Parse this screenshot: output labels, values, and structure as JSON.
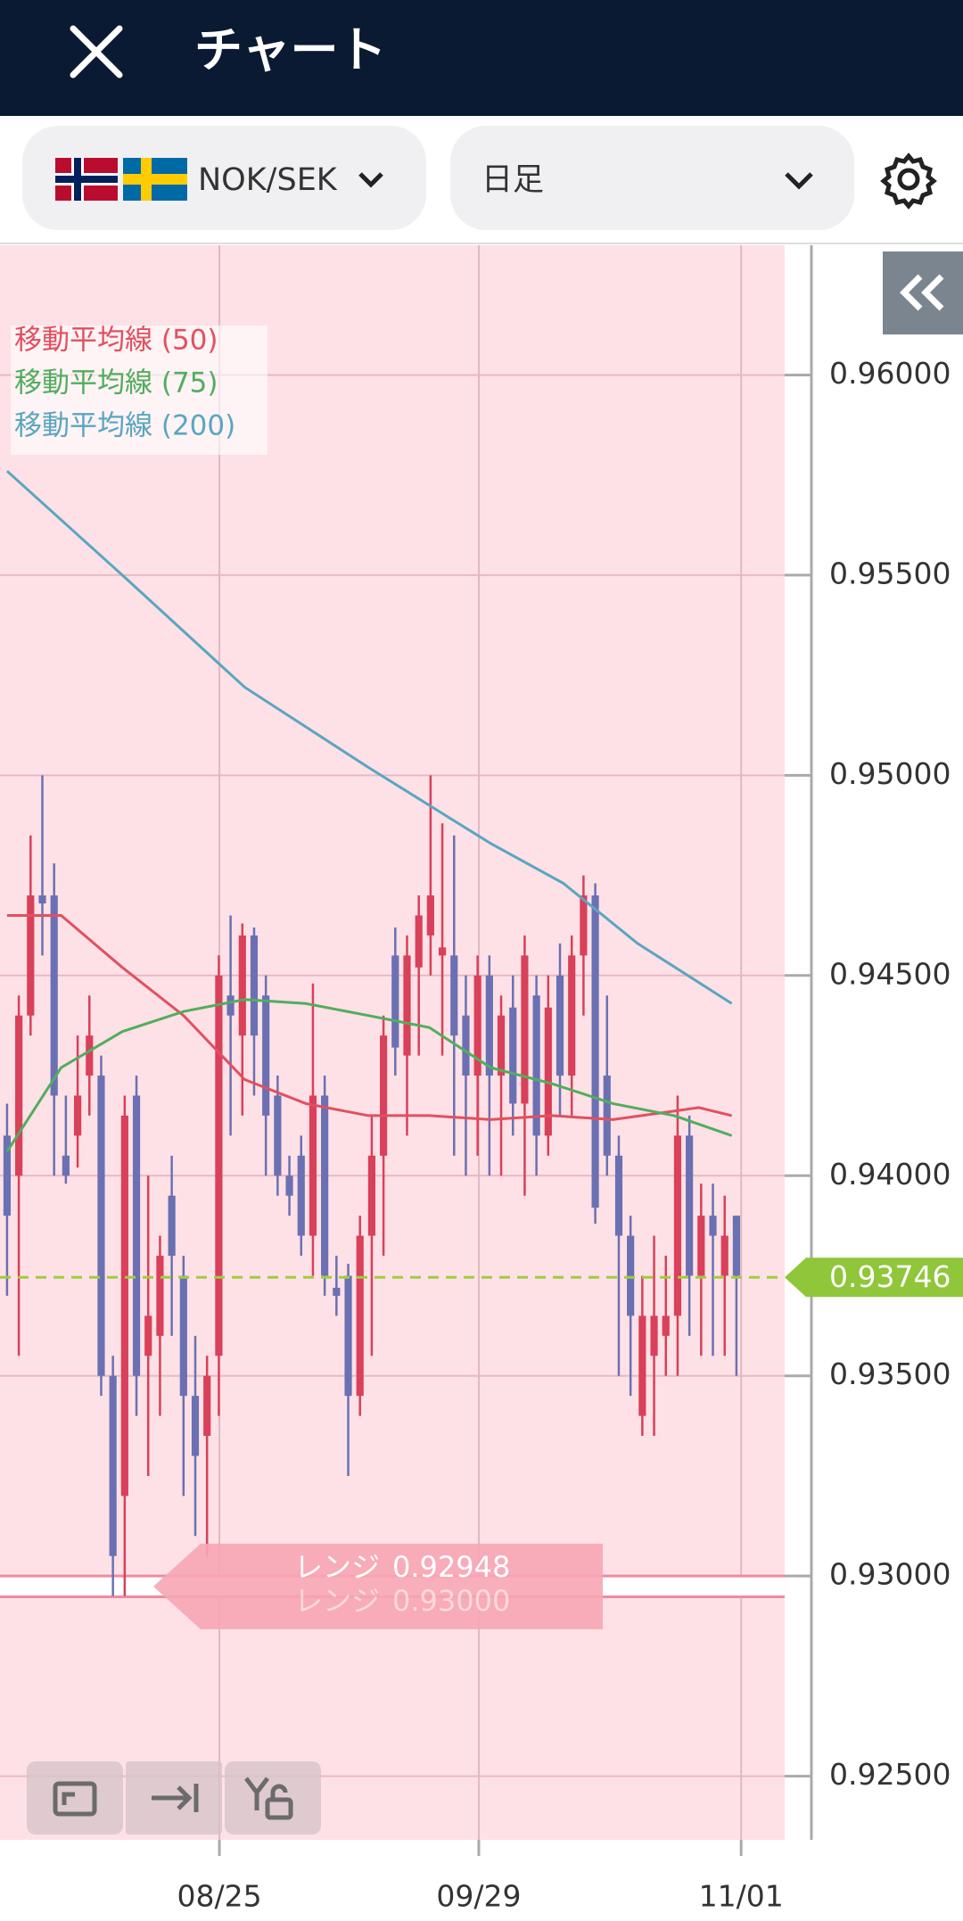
{
  "header": {
    "title": "チャート"
  },
  "toolbar": {
    "pair": "NOK/SEK",
    "timeframe": "日足"
  },
  "chart_data": {
    "type": "candlestick",
    "xlim": [
      -0.6,
      66.1
    ],
    "xticks": [
      {
        "value": 18.05,
        "label": "08/25"
      },
      {
        "value": 40.1,
        "label": "09/29"
      },
      {
        "value": 62.4,
        "label": "11/01"
      }
    ],
    "ylim": [
      0.92341,
      0.96324
    ],
    "yticks": [
      {
        "value": 0.96,
        "label": "0.96000"
      },
      {
        "value": 0.955,
        "label": "0.95500"
      },
      {
        "value": 0.95,
        "label": "0.95000"
      },
      {
        "value": 0.945,
        "label": "0.94500"
      },
      {
        "value": 0.94,
        "label": "0.94000"
      },
      {
        "value": 0.935,
        "label": "0.93500"
      },
      {
        "value": 0.93,
        "label": "0.93000"
      },
      {
        "value": 0.925,
        "label": "0.92500"
      }
    ],
    "grid": true,
    "up_color": "#d9405a",
    "down_color": "#6b70b3",
    "open": [
      0.941,
      0.94,
      0.944,
      0.947,
      0.947,
      0.9405,
      0.941,
      0.9425,
      0.9425,
      0.935,
      0.932,
      0.942,
      0.9355,
      0.936,
      0.9395,
      0.9375,
      0.9345,
      0.9335,
      0.9355,
      0.9445,
      0.9435,
      0.946,
      0.9445,
      0.942,
      0.94,
      0.9405,
      0.9385,
      0.942,
      0.9372,
      0.9375,
      0.9345,
      0.9385,
      0.9405,
      0.9455,
      0.943,
      0.9452,
      0.946,
      0.9455,
      0.9455,
      0.944,
      0.9425,
      0.945,
      0.9425,
      0.9442,
      0.9418,
      0.9445,
      0.941,
      0.945,
      0.9425,
      0.9455,
      0.947,
      0.9425,
      0.9405,
      0.9385,
      0.934,
      0.9355,
      0.936,
      0.9365,
      0.941,
      0.9375,
      0.939,
      0.9375,
      0.939
    ],
    "high": [
      0.9418,
      0.9445,
      0.9485,
      0.95,
      0.9478,
      0.942,
      0.9435,
      0.9445,
      0.943,
      0.9355,
      0.942,
      0.9425,
      0.94,
      0.9385,
      0.9405,
      0.938,
      0.936,
      0.9355,
      0.9455,
      0.9465,
      0.9463,
      0.9462,
      0.945,
      0.9425,
      0.9405,
      0.941,
      0.9448,
      0.9425,
      0.938,
      0.9378,
      0.939,
      0.9415,
      0.944,
      0.9462,
      0.946,
      0.947,
      0.95,
      0.9488,
      0.9485,
      0.945,
      0.9455,
      0.9455,
      0.9445,
      0.945,
      0.946,
      0.945,
      0.945,
      0.9458,
      0.946,
      0.9475,
      0.9473,
      0.9445,
      0.941,
      0.939,
      0.9375,
      0.9385,
      0.938,
      0.942,
      0.9415,
      0.9398,
      0.9398,
      0.9395,
      0.939
    ],
    "low": [
      0.937,
      0.9355,
      0.9435,
      0.9455,
      0.94,
      0.9398,
      0.9402,
      0.9415,
      0.9345,
      0.9295,
      0.9295,
      0.934,
      0.9325,
      0.934,
      0.936,
      0.932,
      0.931,
      0.9305,
      0.934,
      0.941,
      0.9415,
      0.942,
      0.94,
      0.9395,
      0.939,
      0.938,
      0.9375,
      0.937,
      0.9365,
      0.9325,
      0.934,
      0.9355,
      0.938,
      0.9425,
      0.941,
      0.943,
      0.945,
      0.943,
      0.9405,
      0.94,
      0.9405,
      0.94,
      0.94,
      0.941,
      0.9395,
      0.94,
      0.9405,
      0.9415,
      0.9415,
      0.944,
      0.9388,
      0.94,
      0.935,
      0.9345,
      0.9335,
      0.9335,
      0.935,
      0.935,
      0.936,
      0.9355,
      0.9355,
      0.9355,
      0.935
    ],
    "close": [
      0.939,
      0.944,
      0.947,
      0.9468,
      0.942,
      0.94,
      0.942,
      0.9435,
      0.935,
      0.9305,
      0.9415,
      0.935,
      0.9365,
      0.938,
      0.938,
      0.9345,
      0.933,
      0.935,
      0.945,
      0.944,
      0.946,
      0.9435,
      0.9415,
      0.94,
      0.9395,
      0.9385,
      0.942,
      0.9375,
      0.937,
      0.9345,
      0.9385,
      0.9405,
      0.9435,
      0.9432,
      0.9455,
      0.9465,
      0.947,
      0.9457,
      0.9435,
      0.9425,
      0.945,
      0.9425,
      0.944,
      0.9418,
      0.9455,
      0.941,
      0.9442,
      0.9425,
      0.9455,
      0.947,
      0.9392,
      0.9405,
      0.9385,
      0.9365,
      0.9365,
      0.9365,
      0.9365,
      0.941,
      0.9375,
      0.939,
      0.9385,
      0.9385,
      0.9375
    ],
    "series": [
      {
        "name": "移動平均線 (50)",
        "color": "#e2505f",
        "x": [
          0,
          4.6,
          9.8,
          15.0,
          20.2,
          25.4,
          30.7,
          35.9,
          41.1,
          46.3,
          51.5,
          58.8,
          61.6
        ],
        "values": [
          0.9465,
          0.9465,
          0.9452,
          0.944,
          0.9424,
          0.9418,
          0.9415,
          0.9415,
          0.9414,
          0.9415,
          0.9414,
          0.9417,
          0.9415
        ]
      },
      {
        "name": "移動平均線 (75)",
        "color": "#52ad5e",
        "x": [
          0,
          4.6,
          9.8,
          15.0,
          20.2,
          25.4,
          30.7,
          35.9,
          41.1,
          46.3,
          51.5,
          56.7,
          61.6
        ],
        "values": [
          0.9406,
          0.9427,
          0.9436,
          0.9441,
          0.9444,
          0.9443,
          0.944,
          0.9437,
          0.9427,
          0.9423,
          0.9418,
          0.9415,
          0.941
        ]
      },
      {
        "name": "移動平均線 (200)",
        "color": "#5aa6c0",
        "x": [
          0,
          9.8,
          20.2,
          30.7,
          41.1,
          47.3,
          53.6,
          61.6
        ],
        "values": [
          0.9576,
          0.955,
          0.9522,
          0.9502,
          0.9483,
          0.9473,
          0.9458,
          0.9443
        ]
      }
    ],
    "legend": "top-left",
    "range_lines": [
      {
        "label": "レンジ",
        "value": 0.92948
      },
      {
        "label": "レンジ",
        "value": 0.93,
        "value_label": "0.93000"
      }
    ],
    "current_price": 0.93746
  }
}
